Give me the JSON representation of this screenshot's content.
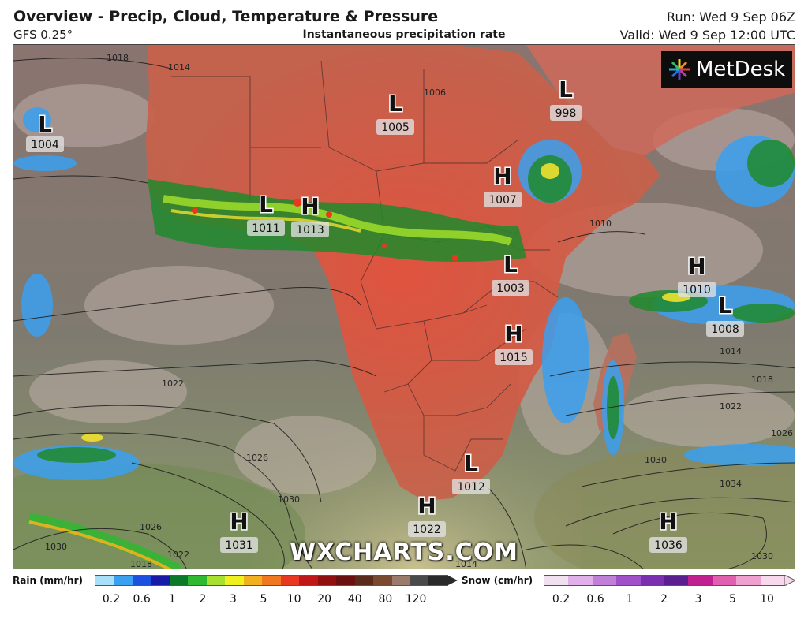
{
  "header": {
    "title": "Overview - Precip, Cloud, Temperature & Pressure",
    "model": "GFS 0.25°",
    "subtitle": "Instantaneous precipitation rate",
    "run": "Run: Wed 9 Sep 06Z",
    "valid": "Valid: Wed 9 Sep 12:00 UTC"
  },
  "brand": {
    "logo_text": "MetDesk",
    "watermark": "WXCHARTS.COM"
  },
  "pressure_systems": [
    {
      "type": "L",
      "value": "1004"
    },
    {
      "type": "L",
      "value": "1005"
    },
    {
      "type": "L",
      "value": "998"
    },
    {
      "type": "H",
      "value": "1007"
    },
    {
      "type": "L",
      "value": "1011"
    },
    {
      "type": "H",
      "value": "1013"
    },
    {
      "type": "L",
      "value": "1003"
    },
    {
      "type": "H",
      "value": "1010"
    },
    {
      "type": "L",
      "value": "1008"
    },
    {
      "type": "H",
      "value": "1015"
    },
    {
      "type": "L",
      "value": "1012"
    },
    {
      "type": "H",
      "value": "1022"
    },
    {
      "type": "H",
      "value": "1031"
    },
    {
      "type": "H",
      "value": "1036"
    }
  ],
  "isobar_labels": [
    "1018",
    "1014",
    "1006",
    "1010",
    "1014",
    "1018",
    "1022",
    "1026",
    "1030",
    "1034",
    "1030",
    "1022",
    "1026",
    "1030",
    "1026",
    "1018",
    "1022",
    "1030",
    "1014"
  ],
  "legend": {
    "rain": {
      "title": "Rain (mm/hr)",
      "ticks": [
        "0.2",
        "0.6",
        "1",
        "2",
        "3",
        "5",
        "10",
        "20",
        "40",
        "80",
        "120"
      ],
      "colors": [
        "#a8e0f8",
        "#3aa0f0",
        "#1c50e0",
        "#1a1aa8",
        "#0a7a2a",
        "#30b830",
        "#a8e030",
        "#f0f020",
        "#f0b020",
        "#f07820",
        "#e83820",
        "#c01818",
        "#901010",
        "#6a1010",
        "#5a2a1a",
        "#7a4a30",
        "#9a7a6a",
        "#4a4a4a",
        "#2a2a2a"
      ]
    },
    "snow": {
      "title": "Snow (cm/hr)",
      "ticks": [
        "0.2",
        "0.6",
        "1",
        "2",
        "3",
        "5",
        "10"
      ],
      "colors": [
        "#f0e0f0",
        "#e0b0e8",
        "#c080d8",
        "#a050c8",
        "#7a30b0",
        "#5a2090",
        "#c02090",
        "#e060b0",
        "#f0a0d0",
        "#f8d8ec"
      ]
    }
  }
}
